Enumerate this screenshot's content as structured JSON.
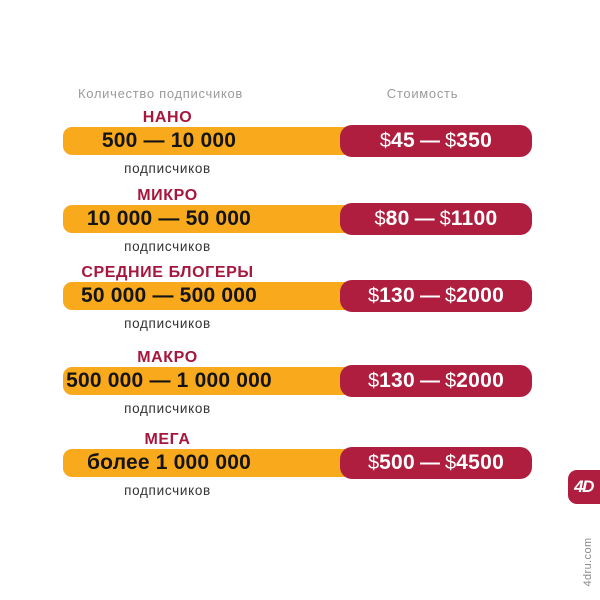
{
  "page": {
    "colors": {
      "background": "#ffffff",
      "yellow_bar": "#F8AA1C",
      "crimson_bar": "#AF1E3E",
      "title_crimson": "#A6163D",
      "header_gray": "#9B9B9B",
      "range_text": "#141414",
      "site_gray": "#8A8A8A"
    }
  },
  "header": {
    "left_label": "Количество подписчиков",
    "right_label": "Стоимость"
  },
  "symbols": {
    "currency": "$",
    "dash": "—"
  },
  "tiers": [
    {
      "name": "НАНО",
      "range": "500 — 10 000",
      "unit": "подписчиков",
      "price": "$45 — $350",
      "price_min": "45",
      "price_max": "350"
    },
    {
      "name": "МИКРО",
      "range": "10 000 — 50 000",
      "unit": "подписчиков",
      "price": "$80 — $1100",
      "price_min": "80",
      "price_max": "1100"
    },
    {
      "name": "СРЕДНИЕ БЛОГЕРЫ",
      "range": "50 000 — 500 000",
      "unit": "подписчиков",
      "price": "$130 — $2000",
      "price_min": "130",
      "price_max": "2000"
    },
    {
      "name": "МАКРО",
      "range": "500 000 — 1 000 000",
      "unit": "подписчиков",
      "price": "$130 — $2000",
      "price_min": "130",
      "price_max": "2000"
    },
    {
      "name": "МЕГА",
      "range": "более 1 000 000",
      "unit": "подписчиков",
      "price": "$500 — $4500",
      "price_min": "500",
      "price_max": "4500"
    }
  ],
  "branding": {
    "logo_text": "4D",
    "site": "4dru.com"
  },
  "chart_data": {
    "type": "table",
    "title": "",
    "columns": [
      "Количество подписчиков",
      "Стоимость"
    ],
    "rows": [
      {
        "tier": "НАНО",
        "subscribers_range": "500 — 10 000 подписчиков",
        "subscribers_min": 500,
        "subscribers_max": 10000,
        "price_range_usd": "$45 — $350",
        "price_min_usd": 45,
        "price_max_usd": 350
      },
      {
        "tier": "МИКРО",
        "subscribers_range": "10 000 — 50 000 подписчиков",
        "subscribers_min": 10000,
        "subscribers_max": 50000,
        "price_range_usd": "$80 — $1100",
        "price_min_usd": 80,
        "price_max_usd": 1100
      },
      {
        "tier": "СРЕДНИЕ БЛОГЕРЫ",
        "subscribers_range": "50 000 — 500 000 подписчиков",
        "subscribers_min": 50000,
        "subscribers_max": 500000,
        "price_range_usd": "$130 — $2000",
        "price_min_usd": 130,
        "price_max_usd": 2000
      },
      {
        "tier": "МАКРО",
        "subscribers_range": "500 000 — 1 000 000 подписчиков",
        "subscribers_min": 500000,
        "subscribers_max": 1000000,
        "price_range_usd": "$130 — $2000",
        "price_min_usd": 130,
        "price_max_usd": 2000
      },
      {
        "tier": "МЕГА",
        "subscribers_range": "более 1 000 000 подписчиков",
        "subscribers_min": 1000000,
        "subscribers_max": null,
        "price_range_usd": "$500 — $4500",
        "price_min_usd": 500,
        "price_max_usd": 4500
      }
    ]
  }
}
